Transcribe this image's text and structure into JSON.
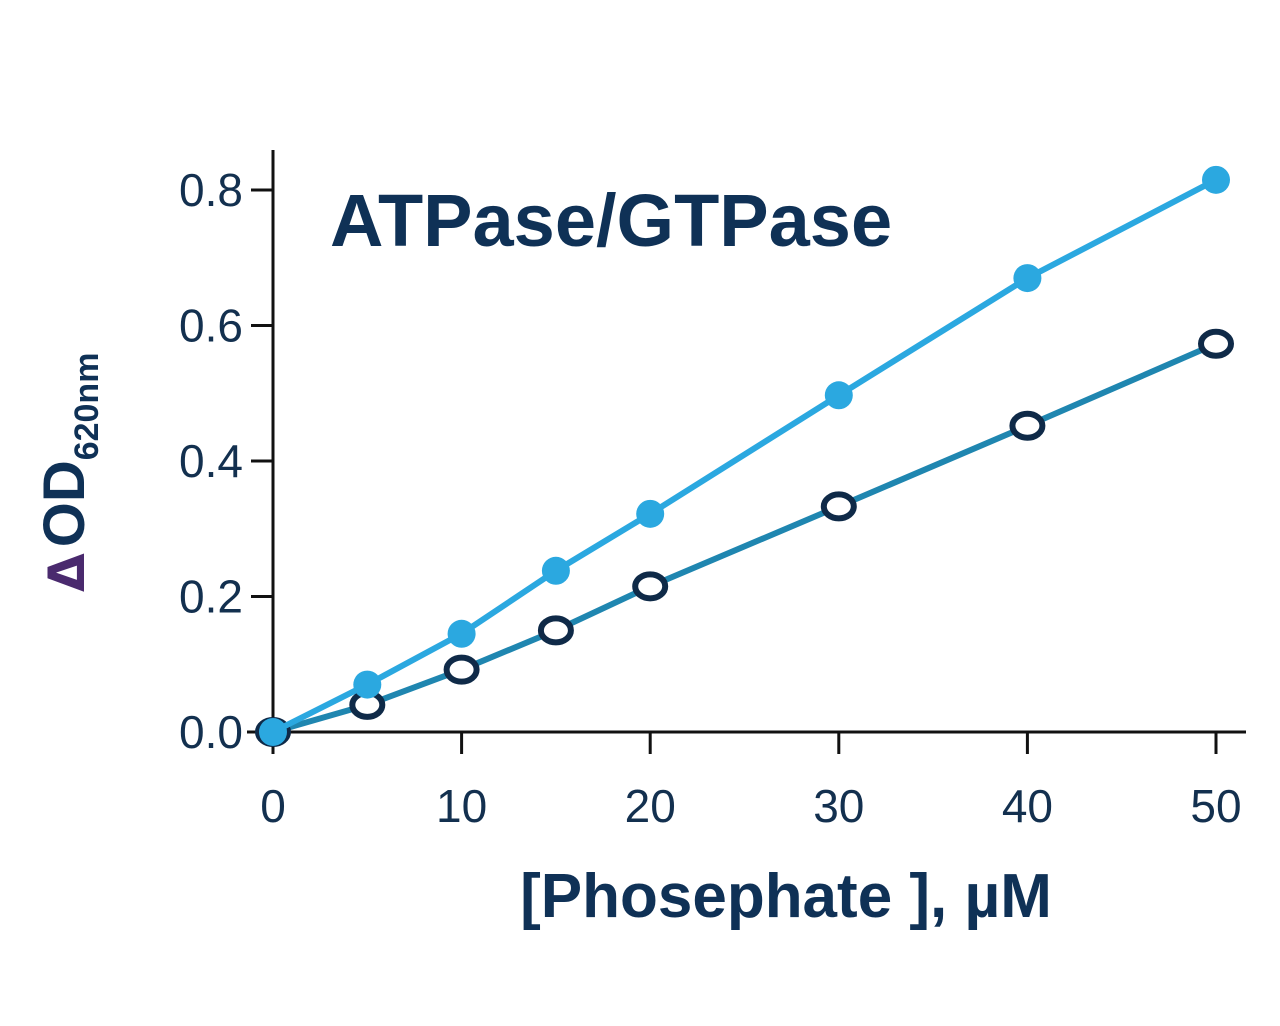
{
  "chart_data": {
    "type": "line",
    "title": "ATPase/GTPase",
    "xlabel": "[Phosephate ], µM",
    "ylabel": {
      "prefix": "Δ",
      "main": "OD",
      "subscript": "620nm"
    },
    "xlim": [
      0,
      50
    ],
    "ylim": [
      0,
      0.8
    ],
    "x_ticks": [
      0,
      10,
      20,
      30,
      40,
      50
    ],
    "x_tick_labels": [
      "0",
      "10",
      "20",
      "30",
      "40",
      "50"
    ],
    "y_ticks": [
      0,
      0.2,
      0.4,
      0.6,
      0.8
    ],
    "y_tick_labels": [
      "0.0",
      "0.2",
      "0.4",
      "0.6",
      "0.8"
    ],
    "grid": false,
    "legend": "none",
    "series": [
      {
        "marker": "filled-circle",
        "color": "#2ba8e0",
        "x": [
          0,
          5,
          10,
          15,
          20,
          30,
          40,
          50
        ],
        "y": [
          0.0,
          0.07,
          0.145,
          0.238,
          0.322,
          0.497,
          0.67,
          0.815
        ]
      },
      {
        "marker": "open-circle",
        "color": "#1f86b0",
        "marker_edge_color": "#0f2a48",
        "x": [
          0,
          5,
          10,
          15,
          20,
          30,
          40,
          50
        ],
        "y": [
          0.0,
          0.04,
          0.092,
          0.15,
          0.215,
          0.333,
          0.452,
          0.573
        ]
      }
    ],
    "colors": {
      "axis": "#111111",
      "tick_text": "#13304f",
      "title": "#0f3156",
      "delta": "#4a2a6e"
    }
  }
}
